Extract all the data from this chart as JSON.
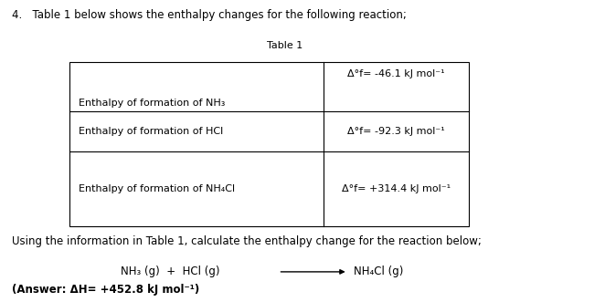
{
  "bg_color": "#ffffff",
  "header_text": "4.   Table 1 below shows the enthalpy changes for the following reaction;",
  "table_title": "Table 1",
  "row0_left": "",
  "row0_right": "Δ°f= -46.1 kJ mol⁻¹",
  "row0b_left": "Enthalpy of formation of NH₃",
  "row1_left": "Enthalpy of formation of HCl",
  "row1_right": "Δ°f= -92.3 kJ mol⁻¹",
  "row2_left": "Enthalpy of formation of NH₄Cl",
  "row2_right": "Δ°f= +314.4 kJ mol⁻¹",
  "using_text": "Using the information in Table 1, calculate the enthalpy change for the reaction below;",
  "answer_text": "(Answer: ΔH= +452.8 kJ mol⁻¹)",
  "font_size_header": 8.5,
  "font_size_table": 8.0,
  "font_size_using": 8.5,
  "font_size_reaction": 8.5,
  "font_size_answer": 8.5
}
